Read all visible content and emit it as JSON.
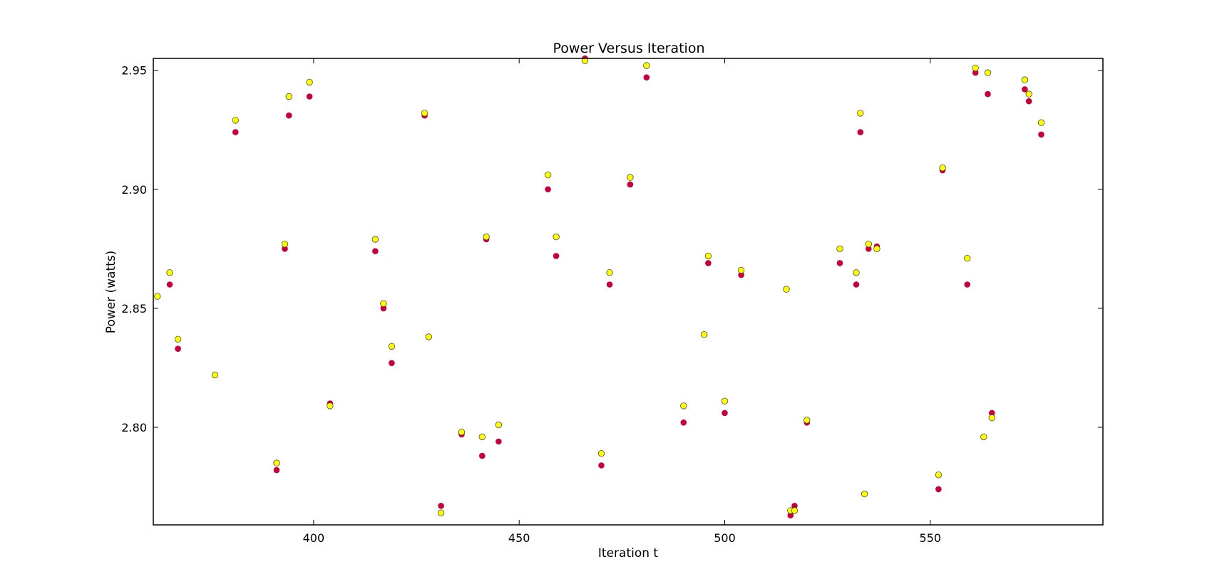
{
  "chart_data": {
    "type": "scatter",
    "title": "Power Versus Iteration",
    "xlabel": "Iteration t",
    "ylabel": "Power (watts)",
    "xlim": [
      361,
      592
    ],
    "ylim": [
      2.759,
      2.955
    ],
    "xticks": [
      400,
      450,
      500,
      550
    ],
    "yticks": [
      2.8,
      2.85,
      2.9,
      2.95
    ],
    "xtick_labels": [
      "400",
      "450",
      "500",
      "550"
    ],
    "ytick_labels": [
      "2.80",
      "2.85",
      "2.90",
      "2.95"
    ],
    "grid": false,
    "legend": "none",
    "series": [
      {
        "color": "#c8003a",
        "marker": "filled-circle",
        "x": [
          365,
          367,
          381,
          391,
          393,
          394,
          399,
          404,
          415,
          417,
          419,
          427,
          428,
          431,
          436,
          441,
          442,
          445,
          457,
          459,
          466,
          470,
          472,
          477,
          481,
          490,
          495,
          496,
          500,
          504,
          515,
          516,
          517,
          520,
          528,
          532,
          533,
          534,
          535,
          537,
          552,
          553,
          559,
          561,
          563,
          564,
          565,
          573,
          574,
          577
        ],
        "y": [
          2.86,
          2.833,
          2.924,
          2.782,
          2.875,
          2.931,
          2.939,
          2.81,
          2.874,
          2.85,
          2.827,
          2.931,
          2.838,
          2.767,
          2.797,
          2.788,
          2.879,
          2.794,
          2.9,
          2.872,
          2.955,
          2.784,
          2.86,
          2.902,
          2.947,
          2.802,
          2.839,
          2.869,
          2.806,
          2.864,
          2.858,
          2.763,
          2.767,
          2.802,
          2.869,
          2.86,
          2.924,
          2.772,
          2.875,
          2.876,
          2.774,
          2.908,
          2.86,
          2.949,
          2.796,
          2.94,
          2.806,
          2.942,
          2.937,
          2.923
        ]
      },
      {
        "color": "#ffff00",
        "marker": "open-circle",
        "x": [
          362,
          365,
          367,
          376,
          381,
          391,
          393,
          394,
          399,
          404,
          415,
          417,
          419,
          427,
          428,
          431,
          436,
          441,
          442,
          445,
          457,
          459,
          466,
          470,
          472,
          477,
          481,
          490,
          495,
          496,
          500,
          504,
          515,
          516,
          517,
          520,
          528,
          532,
          533,
          534,
          535,
          537,
          552,
          553,
          559,
          561,
          563,
          564,
          565,
          573,
          574,
          577
        ],
        "y": [
          2.855,
          2.865,
          2.837,
          2.822,
          2.929,
          2.785,
          2.877,
          2.939,
          2.945,
          2.809,
          2.879,
          2.852,
          2.834,
          2.932,
          2.838,
          2.764,
          2.798,
          2.796,
          2.88,
          2.801,
          2.906,
          2.88,
          2.954,
          2.789,
          2.865,
          2.905,
          2.952,
          2.809,
          2.839,
          2.872,
          2.811,
          2.866,
          2.858,
          2.765,
          2.765,
          2.803,
          2.875,
          2.865,
          2.932,
          2.772,
          2.877,
          2.875,
          2.78,
          2.909,
          2.871,
          2.951,
          2.796,
          2.949,
          2.804,
          2.946,
          2.94,
          2.928
        ]
      }
    ]
  }
}
